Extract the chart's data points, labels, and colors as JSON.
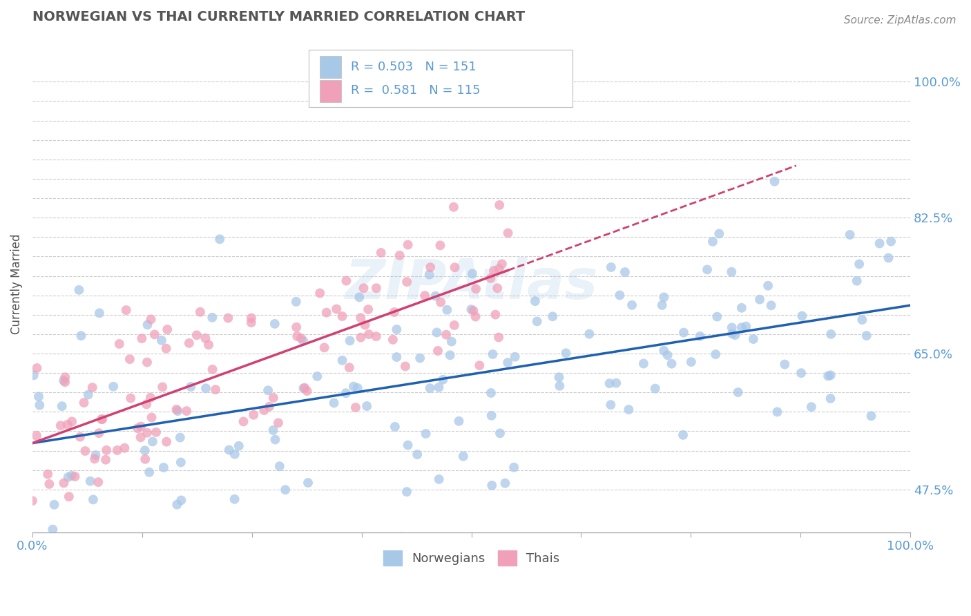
{
  "title": "NORWEGIAN VS THAI CURRENTLY MARRIED CORRELATION CHART",
  "source": "Source: ZipAtlas.com",
  "ylabel": "Currently Married",
  "xlabel": "",
  "watermark": "ZIPAtlas",
  "norwegian_R": 0.503,
  "norwegian_N": 151,
  "thai_R": 0.581,
  "thai_N": 115,
  "norwegian_color": "#a8c8e8",
  "norwegian_line_color": "#2060b0",
  "thai_color": "#f0a0b8",
  "thai_line_color": "#d04070",
  "xlim": [
    0.0,
    1.0
  ],
  "ylim": [
    0.42,
    1.06
  ],
  "background_color": "#ffffff",
  "grid_color": "#cccccc",
  "title_color": "#555555",
  "axis_color": "#5b9bd5",
  "watermark_color": "#a8c8e8"
}
